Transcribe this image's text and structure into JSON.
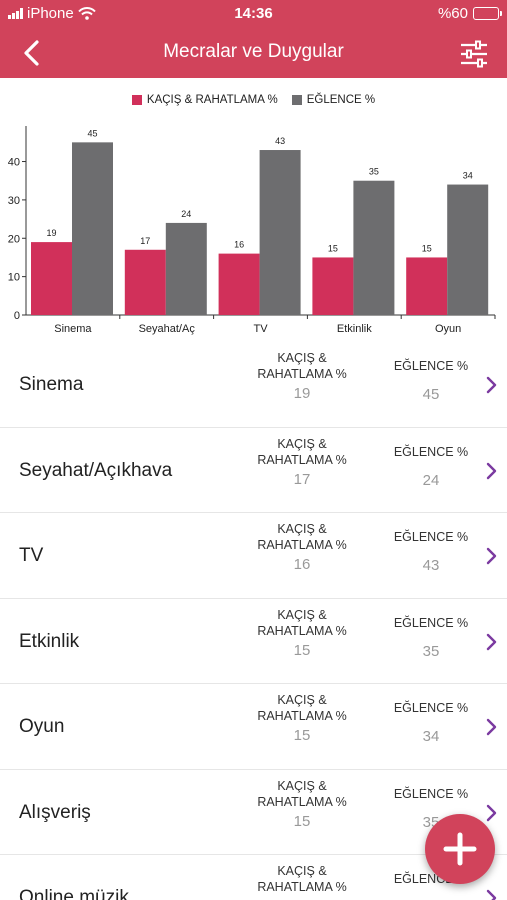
{
  "status": {
    "carrier": "iPhone",
    "time": "14:36",
    "battery": "%60",
    "battery_level": 0.6
  },
  "header": {
    "title": "Mecralar ve Duygular"
  },
  "legend": [
    {
      "label": "KAÇIŞ & RAHATLAMA %",
      "color": "#d1305a"
    },
    {
      "label": "EĞLENCE %",
      "color": "#6d6d6f"
    }
  ],
  "chart_data": {
    "type": "bar",
    "categories": [
      "Sinema",
      "Seyahat/Aç",
      "TV",
      "Etkinlik",
      "Oyun"
    ],
    "series": [
      {
        "name": "KAÇIŞ & RAHATLAMA %",
        "values": [
          19,
          17,
          16,
          15,
          15
        ],
        "color": "#d1305a"
      },
      {
        "name": "EĞLENCE %",
        "values": [
          45,
          24,
          43,
          35,
          34
        ],
        "color": "#6d6d6f"
      }
    ],
    "yticks": [
      0,
      10,
      20,
      30,
      40
    ],
    "ylim": [
      0,
      49
    ],
    "grid": false,
    "legend_position": "top"
  },
  "list": {
    "col1_label": "KAÇIŞ & RAHATLAMA %",
    "col2_label": "EĞLENCE %",
    "rows": [
      {
        "name": "Sinema",
        "v1": "19",
        "v2": "45"
      },
      {
        "name": "Seyahat/Açıkhava",
        "v1": "17",
        "v2": "24"
      },
      {
        "name": "TV",
        "v1": "16",
        "v2": "43"
      },
      {
        "name": "Etkinlik",
        "v1": "15",
        "v2": "35"
      },
      {
        "name": "Oyun",
        "v1": "15",
        "v2": "34"
      },
      {
        "name": "Alışveriş",
        "v1": "15",
        "v2": "35"
      },
      {
        "name": "Online müzik",
        "v1": "",
        "v2": ""
      }
    ]
  },
  "fab": {
    "icon": "plus-icon"
  }
}
